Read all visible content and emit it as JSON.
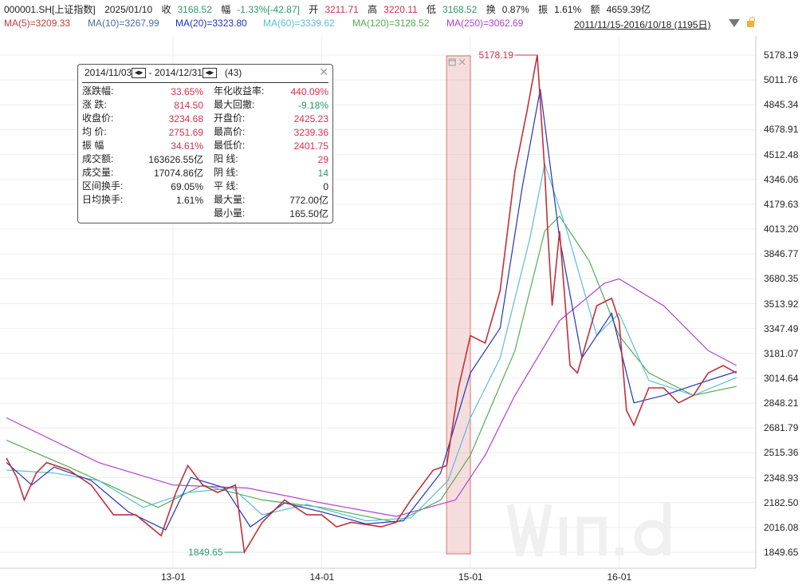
{
  "header": {
    "code": "000001.SH[上证指数]",
    "date": "2025/01/10",
    "close_label": "收",
    "close": "3168.52",
    "chg_label": "幅",
    "chg": "-1.33%[-42.87]",
    "open_label": "开",
    "open": "3211.71",
    "high_label": "高",
    "high": "3220.11",
    "low_label": "低",
    "low": "3168.52",
    "turnover_label": "换",
    "turnover": "0.87%",
    "amp_label": "振",
    "amp": "1.61%",
    "amount_label": "额",
    "amount": "4659.39亿"
  },
  "ma": [
    {
      "label": "MA(5)=3209.33",
      "color": "#d03a3a"
    },
    {
      "label": "MA(10)=3267.99",
      "color": "#4a6fa5"
    },
    {
      "label": "MA(20)=3323.80",
      "color": "#2233bb"
    },
    {
      "label": "MA(60)=3339.62",
      "color": "#5bbcd8"
    },
    {
      "label": "MA(120)=3128.52",
      "color": "#55aa55"
    },
    {
      "label": "MA(250)=3062.69",
      "color": "#b040d0"
    }
  ],
  "range": "2011/11/15-2016/10/18 (1195日)",
  "stats": {
    "start": "2014/11/03",
    "end": "2014/12/31",
    "count": "(43)",
    "left": [
      [
        "涨跌幅:",
        "33.65%",
        "r"
      ],
      [
        "涨  跌:",
        "814.50",
        "r"
      ],
      [
        "收盘价:",
        "3234.68",
        "r"
      ],
      [
        "均  价:",
        "2751.69",
        "r"
      ],
      [
        "振  幅",
        "34.61%",
        "r"
      ],
      [
        "成交额:",
        "163626.55亿",
        ""
      ],
      [
        "成交量:",
        "17074.86亿",
        ""
      ],
      [
        "区间换手:",
        "69.05%",
        ""
      ],
      [
        "日均换手:",
        "1.61%",
        ""
      ]
    ],
    "right": [
      [
        "年化收益率:",
        "440.09%",
        "r"
      ],
      [
        "最大回撤:",
        "-9.18%",
        "g"
      ],
      [
        "开盘价:",
        "2425.23",
        "r"
      ],
      [
        "最高价:",
        "3239.36",
        "r"
      ],
      [
        "最低价:",
        "2401.75",
        "r"
      ],
      [
        "阳  线:",
        "29",
        "r"
      ],
      [
        "阴  线:",
        "14",
        "g"
      ],
      [
        "平  线:",
        "0",
        ""
      ],
      [
        "最大量:",
        "772.00亿",
        ""
      ],
      [
        "最小量:",
        "165.50亿",
        ""
      ]
    ]
  },
  "chart_data": {
    "type": "line",
    "title": "000001.SH 上证指数",
    "yticks": [
      "5178.19",
      "5011.76",
      "4845.34",
      "4678.91",
      "4512.48",
      "4346.06",
      "4179.63",
      "4013.20",
      "3846.77",
      "3680.35",
      "3513.92",
      "3347.49",
      "3181.07",
      "3014.64",
      "2848.21",
      "2681.79",
      "2515.36",
      "2348.93",
      "2182.50",
      "2016.08",
      "1849.65"
    ],
    "ylim": [
      1849.65,
      5178.19
    ],
    "xticks": [
      {
        "label": "13-01",
        "t": 2013.0
      },
      {
        "label": "14-01",
        "t": 2014.0
      },
      {
        "label": "15-01",
        "t": 2015.0
      },
      {
        "label": "16-01",
        "t": 2016.0
      }
    ],
    "annotations": {
      "max": "5178.19",
      "min": "1849.65"
    },
    "highlight": [
      2014.84,
      2015.0
    ],
    "series": [
      {
        "name": "price",
        "color": "#c0303a",
        "points": [
          [
            2011.88,
            2480
          ],
          [
            2011.95,
            2350
          ],
          [
            2012.0,
            2200
          ],
          [
            2012.08,
            2380
          ],
          [
            2012.15,
            2450
          ],
          [
            2012.3,
            2400
          ],
          [
            2012.45,
            2300
          ],
          [
            2012.6,
            2100
          ],
          [
            2012.75,
            2100
          ],
          [
            2012.92,
            1960
          ],
          [
            2013.02,
            2250
          ],
          [
            2013.1,
            2430
          ],
          [
            2013.2,
            2300
          ],
          [
            2013.3,
            2250
          ],
          [
            2013.42,
            2300
          ],
          [
            2013.48,
            1850
          ],
          [
            2013.6,
            2050
          ],
          [
            2013.75,
            2200
          ],
          [
            2013.9,
            2100
          ],
          [
            2014.0,
            2100
          ],
          [
            2014.1,
            2020
          ],
          [
            2014.2,
            2050
          ],
          [
            2014.4,
            2020
          ],
          [
            2014.5,
            2050
          ],
          [
            2014.6,
            2200
          ],
          [
            2014.75,
            2400
          ],
          [
            2014.84,
            2430
          ],
          [
            2014.92,
            2950
          ],
          [
            2015.0,
            3300
          ],
          [
            2015.1,
            3250
          ],
          [
            2015.2,
            3600
          ],
          [
            2015.3,
            4400
          ],
          [
            2015.38,
            4800
          ],
          [
            2015.45,
            5178
          ],
          [
            2015.5,
            4400
          ],
          [
            2015.52,
            4000
          ],
          [
            2015.55,
            3500
          ],
          [
            2015.6,
            4000
          ],
          [
            2015.67,
            3100
          ],
          [
            2015.72,
            3050
          ],
          [
            2015.85,
            3500
          ],
          [
            2015.95,
            3550
          ],
          [
            2016.0,
            3400
          ],
          [
            2016.05,
            2800
          ],
          [
            2016.1,
            2700
          ],
          [
            2016.2,
            2950
          ],
          [
            2016.3,
            2950
          ],
          [
            2016.4,
            2850
          ],
          [
            2016.5,
            2900
          ],
          [
            2016.6,
            3050
          ],
          [
            2016.7,
            3100
          ],
          [
            2016.79,
            3050
          ]
        ]
      },
      {
        "name": "MA(20)",
        "color": "#2233bb",
        "points": [
          [
            2011.88,
            2450
          ],
          [
            2012.05,
            2300
          ],
          [
            2012.2,
            2420
          ],
          [
            2012.45,
            2330
          ],
          [
            2012.7,
            2120
          ],
          [
            2012.95,
            2000
          ],
          [
            2013.12,
            2350
          ],
          [
            2013.35,
            2280
          ],
          [
            2013.52,
            2020
          ],
          [
            2013.75,
            2180
          ],
          [
            2014.0,
            2120
          ],
          [
            2014.3,
            2040
          ],
          [
            2014.55,
            2060
          ],
          [
            2014.8,
            2380
          ],
          [
            2015.0,
            3050
          ],
          [
            2015.2,
            3350
          ],
          [
            2015.35,
            4300
          ],
          [
            2015.47,
            4950
          ],
          [
            2015.6,
            3950
          ],
          [
            2015.75,
            3150
          ],
          [
            2015.95,
            3450
          ],
          [
            2016.1,
            2850
          ],
          [
            2016.3,
            2900
          ],
          [
            2016.6,
            3000
          ],
          [
            2016.79,
            3060
          ]
        ]
      },
      {
        "name": "MA(60)",
        "color": "#5bbcd8",
        "points": [
          [
            2011.88,
            2400
          ],
          [
            2012.2,
            2380
          ],
          [
            2012.5,
            2330
          ],
          [
            2012.8,
            2150
          ],
          [
            2013.1,
            2250
          ],
          [
            2013.4,
            2280
          ],
          [
            2013.6,
            2100
          ],
          [
            2013.9,
            2170
          ],
          [
            2014.3,
            2060
          ],
          [
            2014.6,
            2080
          ],
          [
            2014.85,
            2330
          ],
          [
            2015.0,
            2750
          ],
          [
            2015.2,
            3150
          ],
          [
            2015.4,
            3950
          ],
          [
            2015.5,
            4450
          ],
          [
            2015.65,
            4000
          ],
          [
            2015.85,
            3300
          ],
          [
            2016.0,
            3450
          ],
          [
            2016.2,
            3000
          ],
          [
            2016.5,
            2900
          ],
          [
            2016.79,
            3020
          ]
        ]
      },
      {
        "name": "MA(120)",
        "color": "#55aa55",
        "points": [
          [
            2011.88,
            2600
          ],
          [
            2012.3,
            2420
          ],
          [
            2012.9,
            2150
          ],
          [
            2013.2,
            2300
          ],
          [
            2013.6,
            2200
          ],
          [
            2014.0,
            2150
          ],
          [
            2014.5,
            2050
          ],
          [
            2014.8,
            2200
          ],
          [
            2015.0,
            2500
          ],
          [
            2015.3,
            3200
          ],
          [
            2015.5,
            4000
          ],
          [
            2015.6,
            4100
          ],
          [
            2015.8,
            3800
          ],
          [
            2016.0,
            3300
          ],
          [
            2016.2,
            3050
          ],
          [
            2016.5,
            2900
          ],
          [
            2016.79,
            2960
          ]
        ]
      },
      {
        "name": "MA(250)",
        "color": "#b040d0",
        "points": [
          [
            2011.88,
            2750
          ],
          [
            2012.5,
            2450
          ],
          [
            2013.0,
            2300
          ],
          [
            2013.5,
            2280
          ],
          [
            2014.0,
            2180
          ],
          [
            2014.5,
            2090
          ],
          [
            2014.9,
            2200
          ],
          [
            2015.1,
            2500
          ],
          [
            2015.3,
            2900
          ],
          [
            2015.6,
            3400
          ],
          [
            2015.9,
            3650
          ],
          [
            2016.0,
            3680
          ],
          [
            2016.3,
            3500
          ],
          [
            2016.6,
            3200
          ],
          [
            2016.79,
            3100
          ]
        ]
      }
    ]
  }
}
